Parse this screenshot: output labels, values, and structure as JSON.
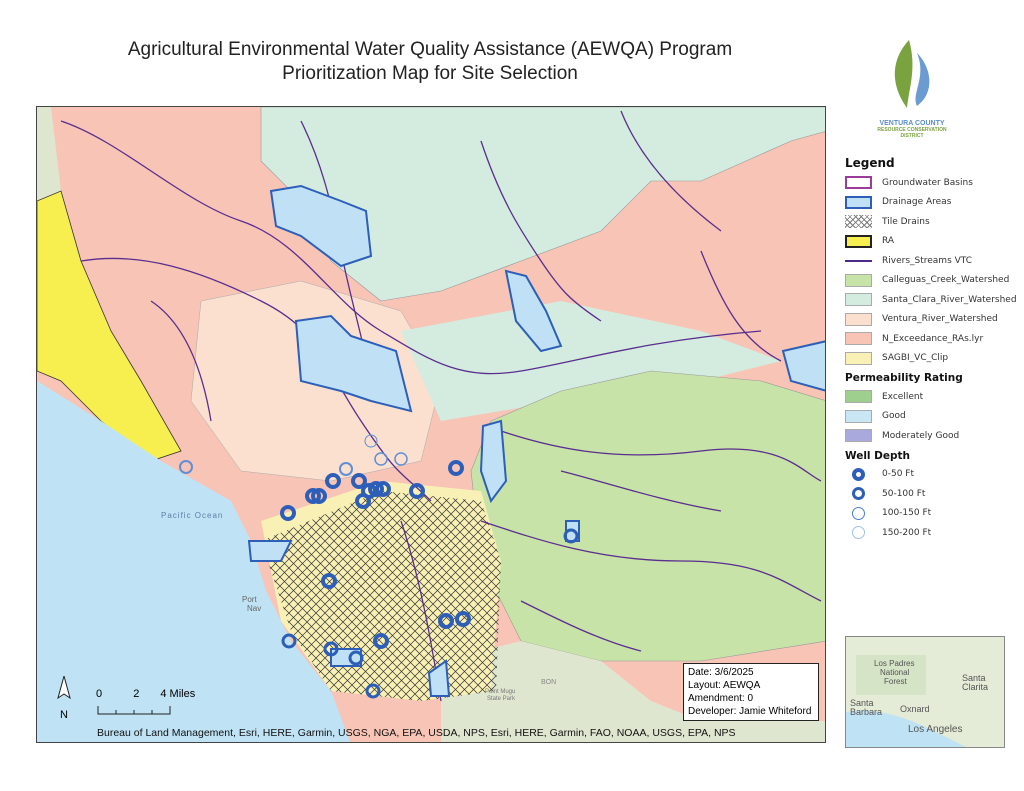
{
  "title": {
    "line1": "Agricultural Environmental Water Quality Assistance (AEWQA) Program",
    "line2": "Prioritization Map for Site Selection"
  },
  "logo": {
    "line1": "VENTURA COUNTY",
    "line2": "RESOURCE CONSERVATION",
    "line3": "DISTRICT"
  },
  "legend": {
    "title": "Legend",
    "layers": [
      {
        "label": "Groundwater Basins",
        "fill": "#ffffff",
        "stroke": "#9b3c9b"
      },
      {
        "label": "Drainage Areas",
        "fill": "#bfe0f5",
        "stroke": "#2d5fb8"
      },
      {
        "label": "Tile Drains",
        "fill": "hatch",
        "stroke": "#444444"
      },
      {
        "label": "RA",
        "fill": "#f7ef4f",
        "stroke": "#222222"
      },
      {
        "label": "Rivers_Streams VTC",
        "fill": "line",
        "stroke": "#4b2a8a"
      },
      {
        "label": "Calleguas_Creek_Watershed",
        "fill": "#c8e3a8",
        "stroke": "#aaaaaa"
      },
      {
        "label": "Santa_Clara_River_Watershed",
        "fill": "#d3ecdf",
        "stroke": "#aaaaaa"
      },
      {
        "label": "Ventura_River_Watershed",
        "fill": "#fbe0cf",
        "stroke": "#aaaaaa"
      },
      {
        "label": "N_Exceedance_RAs.lyr",
        "fill": "#f7c4b6",
        "stroke": "#aaaaaa"
      },
      {
        "label": "SAGBI_VC_Clip",
        "fill": "#f8f0b4",
        "stroke": "#aaaaaa"
      }
    ],
    "permeability_title": "Permeability Rating",
    "permeability": [
      {
        "label": "Excellent",
        "fill": "#9fcf8f"
      },
      {
        "label": "Good",
        "fill": "#c9e6f4"
      },
      {
        "label": "Moderately Good",
        "fill": "#a9a9de"
      }
    ],
    "well_title": "Well Depth",
    "wells": [
      {
        "label": "0-50 Ft",
        "stroke": "#2d5fb8",
        "weight": 4
      },
      {
        "label": "50-100 Ft",
        "stroke": "#2d5fb8",
        "weight": 3
      },
      {
        "label": "100-150 Ft",
        "stroke": "#4a7fcc",
        "weight": 1.5
      },
      {
        "label": "150-200 Ft",
        "stroke": "#9ec0e6",
        "weight": 1
      }
    ]
  },
  "map_labels": {
    "ocean": "Pacific Ocean",
    "port": "Port",
    "port2": "Nav",
    "park": "Point Mugu",
    "park2": "State Park",
    "bon": "BON"
  },
  "info": {
    "date": "Date: 3/6/2025",
    "layout": "Layout: AEWQA",
    "amendment": "Amendment: 0",
    "developer": "Developer: Jamie Whiteford"
  },
  "scale": {
    "t0": "0",
    "t2": "2",
    "t4": "4 Miles"
  },
  "north": "N",
  "credits": "Bureau of Land Management, Esri, HERE, Garmin, USGS, NGA, EPA, USDA, NPS, Esri, HERE, Garmin, FAO, NOAA, USGS, EPA, NPS",
  "inset": {
    "l1": "Los Padres",
    "l2": "National",
    "l3": "Forest",
    "santa_clarita": "Santa",
    "santa_clarita2": "Clarita",
    "santa_barbara": "Santa",
    "santa_barbara2": "Barbara",
    "oxnard": "Oxnard",
    "la": "Los Angeles"
  },
  "colors": {
    "ocean": "#bfe3f5",
    "exceedance": "#f7c4b6",
    "santa_clara": "#d3ecdf",
    "calleguas": "#c8e3a8",
    "ra": "#f7ef4f",
    "hills": "#dfe6d0",
    "stream": "#5a2d8e",
    "drainage": "#2d5fb8"
  }
}
